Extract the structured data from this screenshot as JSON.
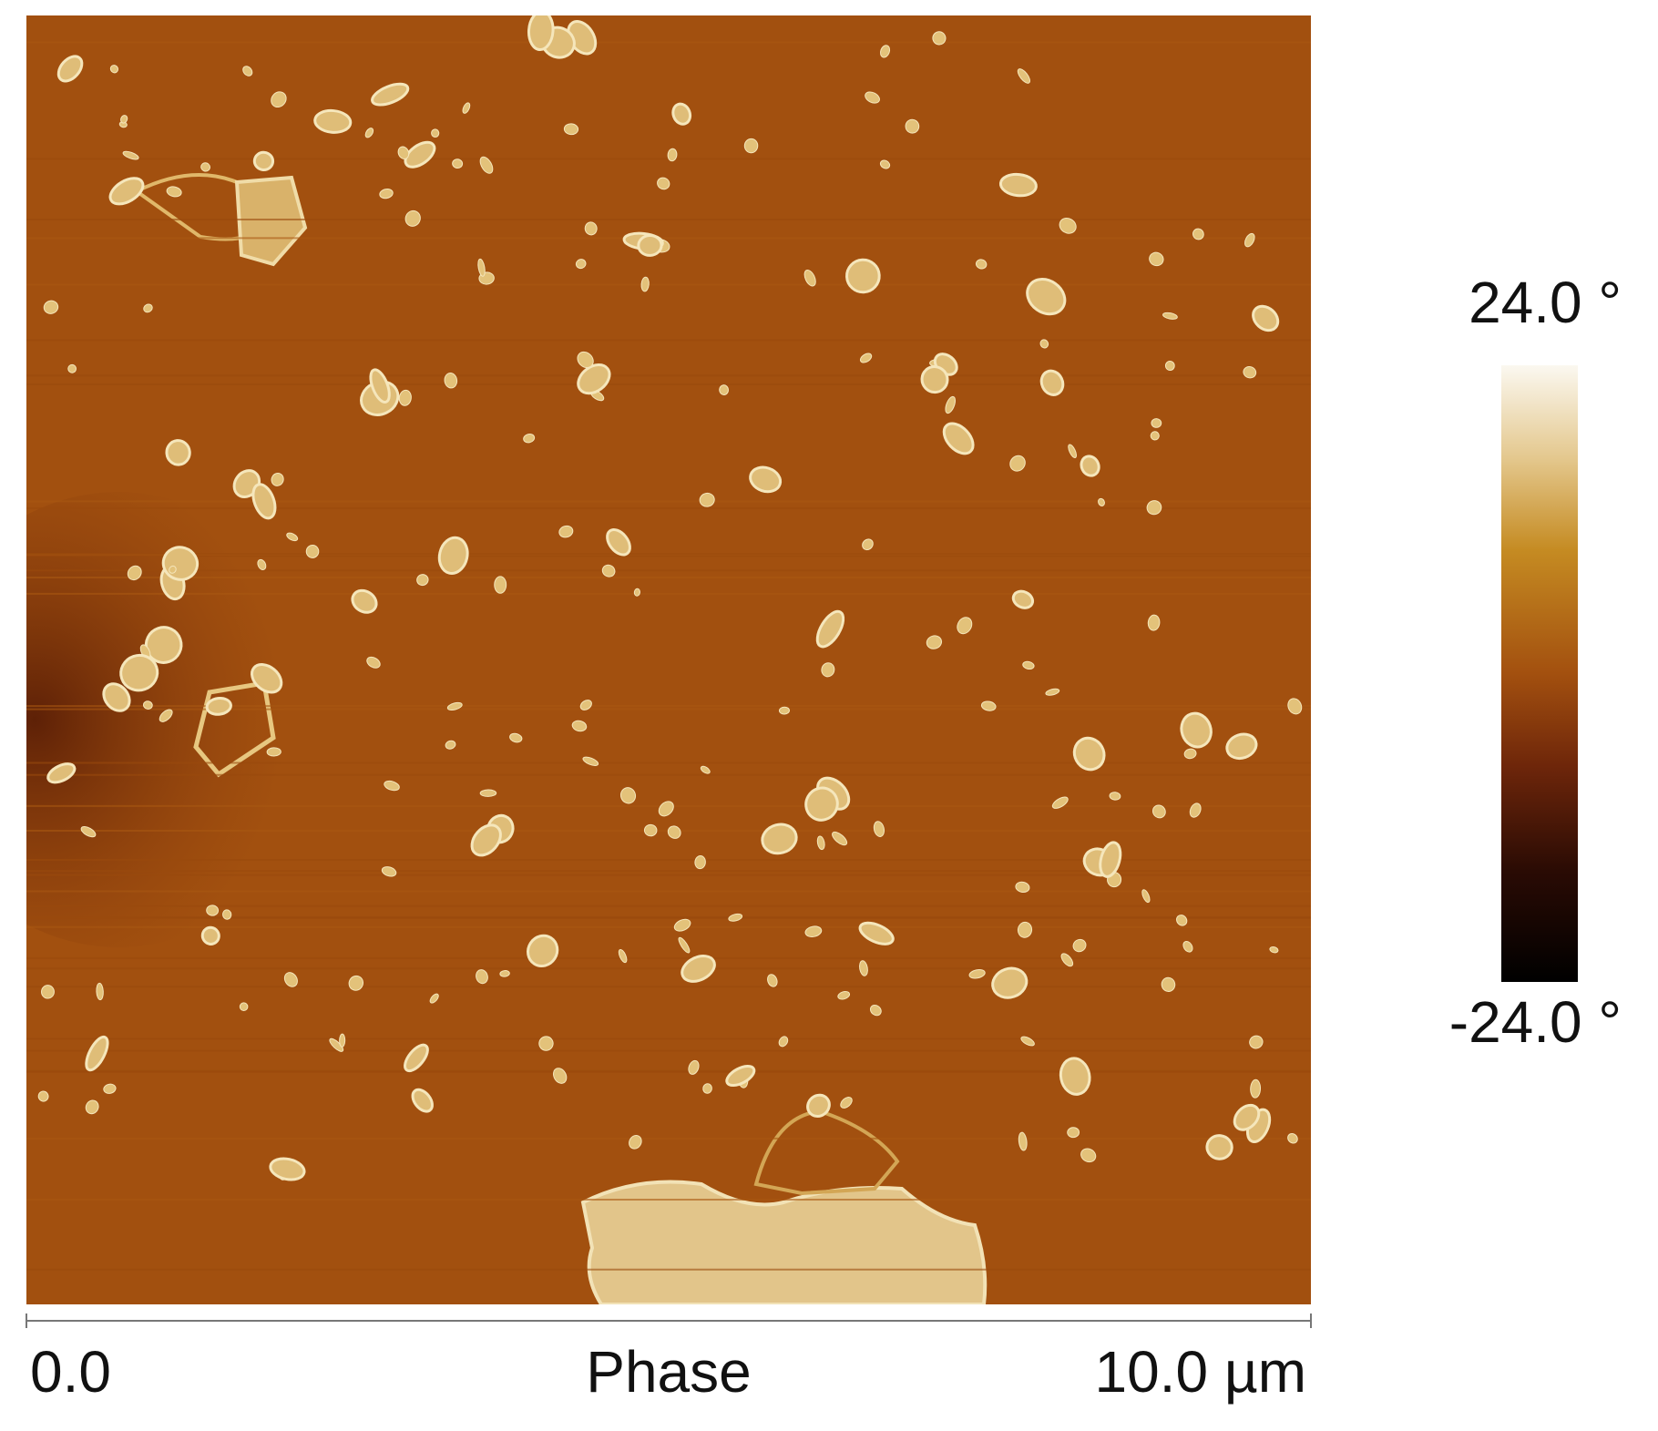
{
  "image": {
    "color_bar": {
      "max": "24.0 °",
      "min": "-24.0 °"
    },
    "scale_bar": {
      "start": "0.0",
      "label": "Phase",
      "end": "10.0 µm"
    }
  }
}
